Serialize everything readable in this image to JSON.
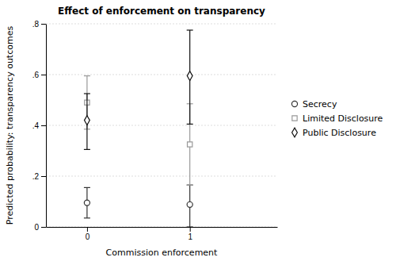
{
  "chart_data": {
    "type": "errorbar",
    "title": "Effect of enforcement on transparency",
    "x_label": "Commission enforcement",
    "y_label": "Predicted probability: transparency outcomes",
    "xlim": [
      -0.4,
      1.85
    ],
    "xticks": [
      0,
      1
    ],
    "ylim": [
      0,
      0.8
    ],
    "yticks": [
      0,
      {
        "value": 0.2,
        "label": ".2"
      },
      {
        "value": 0.4,
        "label": ".4"
      },
      {
        "value": 0.6,
        "label": ".6"
      },
      {
        "value": 0.8,
        "label": ".8"
      }
    ],
    "grid": true,
    "legend": "right",
    "series": [
      {
        "name": "Secrecy",
        "color": "#333333",
        "marker": "circle",
        "x": [
          0,
          1
        ],
        "values": [
          0.095,
          0.088
        ],
        "low": [
          0.035,
          0.0
        ],
        "high": [
          0.155,
          0.165
        ]
      },
      {
        "name": "Limited Disclosure",
        "color": "#999999",
        "marker": "square",
        "x": [
          0,
          1
        ],
        "values": [
          0.49,
          0.325
        ],
        "low": [
          0.385,
          0.165
        ],
        "high": [
          0.595,
          0.485
        ]
      },
      {
        "name": "Public Disclosure",
        "color": "#111111",
        "marker": "diamond",
        "x": [
          0,
          1
        ],
        "values": [
          0.42,
          0.595
        ],
        "low": [
          0.305,
          0.405
        ],
        "high": [
          0.525,
          0.775
        ]
      }
    ]
  }
}
